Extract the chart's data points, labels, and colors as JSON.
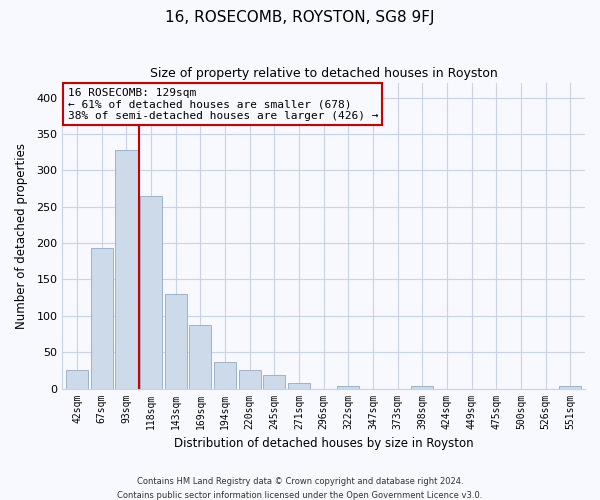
{
  "title": "16, ROSECOMB, ROYSTON, SG8 9FJ",
  "subtitle": "Size of property relative to detached houses in Royston",
  "xlabel": "Distribution of detached houses by size in Royston",
  "ylabel": "Number of detached properties",
  "bar_labels": [
    "42sqm",
    "67sqm",
    "93sqm",
    "118sqm",
    "143sqm",
    "169sqm",
    "194sqm",
    "220sqm",
    "245sqm",
    "271sqm",
    "296sqm",
    "322sqm",
    "347sqm",
    "373sqm",
    "398sqm",
    "424sqm",
    "449sqm",
    "475sqm",
    "500sqm",
    "526sqm",
    "551sqm"
  ],
  "bar_values": [
    25,
    193,
    328,
    265,
    130,
    88,
    37,
    26,
    18,
    8,
    0,
    4,
    0,
    0,
    4,
    0,
    0,
    0,
    0,
    0,
    3
  ],
  "bar_color": "#ccdaea",
  "bar_edge_color": "#9ab4cc",
  "vline_color": "#cc0000",
  "vline_x": 2.5,
  "annotation_text": "16 ROSECOMB: 129sqm\n← 61% of detached houses are smaller (678)\n38% of semi-detached houses are larger (426) →",
  "ylim": [
    0,
    420
  ],
  "yticks": [
    0,
    50,
    100,
    150,
    200,
    250,
    300,
    350,
    400
  ],
  "footer_line1": "Contains HM Land Registry data © Crown copyright and database right 2024.",
  "footer_line2": "Contains public sector information licensed under the Open Government Licence v3.0.",
  "grid_color": "#c8d4e4",
  "background_color": "#f8f8ff",
  "title_fontsize": 11,
  "subtitle_fontsize": 9,
  "annotation_fontsize": 8
}
